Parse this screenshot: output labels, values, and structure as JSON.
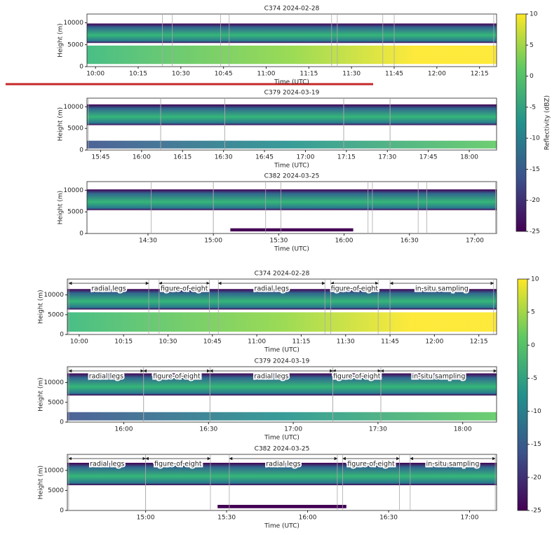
{
  "figures": [
    {
      "colorbar": {
        "label": "Reflectivity (dBZ)",
        "lim": [
          -25,
          10
        ],
        "ticks": [
          10,
          5,
          0,
          -5,
          -10,
          -15,
          -20,
          -25
        ]
      },
      "panels": [
        {
          "title": "C374 2024-02-28",
          "xlabel": "Time (UTC)",
          "ylabel": "Height (m)",
          "xlim": [
            597,
            741
          ],
          "ylim": [
            0,
            12000
          ],
          "yticks": [
            0,
            5000,
            10000
          ],
          "xticks": [
            {
              "value": 600,
              "label": "10:00"
            },
            {
              "value": 615,
              "label": "10:15"
            },
            {
              "value": 630,
              "label": "10:30"
            },
            {
              "value": 645,
              "label": "10:45"
            },
            {
              "value": 660,
              "label": "11:00"
            },
            {
              "value": 675,
              "label": "11:15"
            },
            {
              "value": 690,
              "label": "11:30"
            },
            {
              "value": 705,
              "label": "11:45"
            },
            {
              "value": 720,
              "label": "12:00"
            },
            {
              "value": 735,
              "label": "12:15"
            }
          ]
        },
        {
          "title": "C379 2024-03-19",
          "xlabel": "Time (UTC)",
          "ylabel": "Height (m)",
          "xlim": [
            940,
            1090
          ],
          "ylim": [
            0,
            12000
          ],
          "yticks": [
            0,
            5000,
            10000
          ],
          "xticks": [
            {
              "value": 945,
              "label": "15:45"
            },
            {
              "value": 960,
              "label": "16:00"
            },
            {
              "value": 975,
              "label": "16:15"
            },
            {
              "value": 990,
              "label": "16:30"
            },
            {
              "value": 1005,
              "label": "16:45"
            },
            {
              "value": 1020,
              "label": "17:00"
            },
            {
              "value": 1035,
              "label": "17:15"
            },
            {
              "value": 1050,
              "label": "17:30"
            },
            {
              "value": 1065,
              "label": "17:45"
            },
            {
              "value": 1080,
              "label": "18:00"
            }
          ]
        },
        {
          "title": "C382 2024-03-25",
          "xlabel": "Time (UTC)",
          "ylabel": "Height (m)",
          "xlim": [
            842,
            1030
          ],
          "ylim": [
            0,
            12000
          ],
          "yticks": [
            0,
            5000,
            10000
          ],
          "xticks": [
            {
              "value": 870,
              "label": "14:30"
            },
            {
              "value": 900,
              "label": "15:00"
            },
            {
              "value": 930,
              "label": "15:30"
            },
            {
              "value": 960,
              "label": "16:00"
            },
            {
              "value": 990,
              "label": "16:30"
            },
            {
              "value": 1020,
              "label": "17:00"
            }
          ]
        }
      ]
    },
    {
      "colorbar": {
        "lim": [
          -25,
          10
        ],
        "ticks": [
          10,
          5,
          0,
          -5,
          -10,
          -15,
          -20,
          -25
        ]
      },
      "panels": [
        {
          "title": "C374 2024-02-28",
          "xlabel": "Time (UTC)",
          "ylabel": "Height (m)",
          "xlim": [
            596,
            741
          ],
          "ylim": [
            0,
            14000
          ],
          "yticks": [
            0,
            5000,
            10000
          ],
          "xticks": [
            {
              "value": 600,
              "label": "10:00"
            },
            {
              "value": 615,
              "label": "10:15"
            },
            {
              "value": 630,
              "label": "10:30"
            },
            {
              "value": 645,
              "label": "10:45"
            },
            {
              "value": 660,
              "label": "11:00"
            },
            {
              "value": 675,
              "label": "11:15"
            },
            {
              "value": 690,
              "label": "11:30"
            },
            {
              "value": 705,
              "label": "11:45"
            },
            {
              "value": 720,
              "label": "12:00"
            },
            {
              "value": 735,
              "label": "12:15"
            }
          ],
          "segments": [
            {
              "label": "radial legs",
              "start": 596.5,
              "end": 623.5
            },
            {
              "label": "figure-of-eight",
              "start": 627,
              "end": 644
            },
            {
              "label": "radial legs",
              "start": 647,
              "end": 683
            },
            {
              "label": "figure-of-eight",
              "start": 685,
              "end": 701
            },
            {
              "label": "in-situ sampling",
              "start": 705,
              "end": 740
            }
          ]
        },
        {
          "title": "C379 2024-03-19",
          "xlabel": "Time (UTC)",
          "ylabel": "Height (m)",
          "xlim": [
            940,
            1092
          ],
          "ylim": [
            0,
            14000
          ],
          "yticks": [
            0,
            5000,
            10000
          ],
          "xticks": [
            {
              "value": 960,
              "label": "16:00"
            },
            {
              "value": 990,
              "label": "16:30"
            },
            {
              "value": 1020,
              "label": "17:00"
            },
            {
              "value": 1050,
              "label": "17:30"
            },
            {
              "value": 1080,
              "label": "18:00"
            }
          ],
          "segments": [
            {
              "label": "radial legs",
              "start": 940.5,
              "end": 967
            },
            {
              "label": "figure-of-eight",
              "start": 967,
              "end": 990.5
            },
            {
              "label": "radial legs",
              "start": 990.5,
              "end": 1034
            },
            {
              "label": "figure-of-eight",
              "start": 1034,
              "end": 1051
            },
            {
              "label": "in-situ sampling",
              "start": 1051,
              "end": 1092
            }
          ]
        },
        {
          "title": "C382 2024-03-25",
          "xlabel": "Time (UTC)",
          "ylabel": "Height (m)",
          "xlim": [
            871,
            1030
          ],
          "ylim": [
            0,
            14000
          ],
          "yticks": [
            0,
            5000,
            10000
          ],
          "xticks": [
            {
              "value": 900,
              "label": "15:00"
            },
            {
              "value": 930,
              "label": "15:30"
            },
            {
              "value": 960,
              "label": "16:00"
            },
            {
              "value": 990,
              "label": "16:30"
            },
            {
              "value": 1020,
              "label": "17:00"
            }
          ],
          "segments": [
            {
              "label": "radial legs",
              "start": 871.5,
              "end": 900
            },
            {
              "label": "figure-of-eight",
              "start": 900,
              "end": 924
            },
            {
              "label": "radial legs",
              "start": 931,
              "end": 971
            },
            {
              "label": "figure-of-eight",
              "start": 973,
              "end": 994
            },
            {
              "label": "in-situ sampling",
              "start": 998,
              "end": 1029.5
            }
          ]
        }
      ]
    }
  ]
}
